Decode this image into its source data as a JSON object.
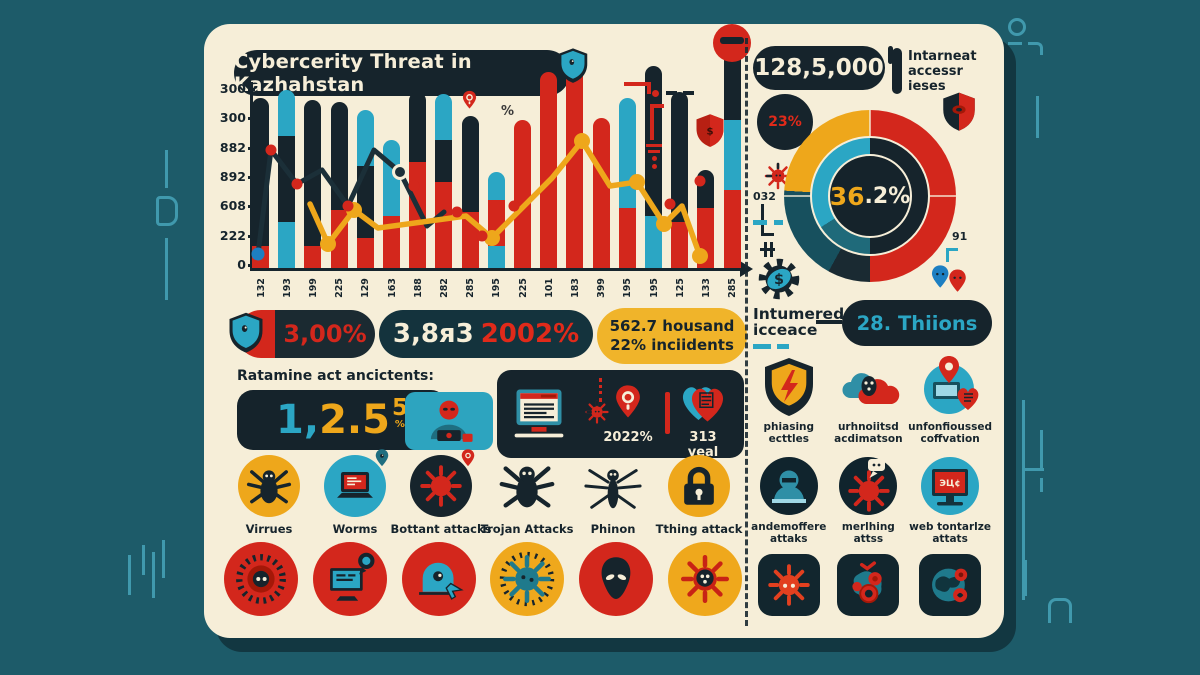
{
  "palette": {
    "red": "#d3271c",
    "dark": "#16242c",
    "cyan": "#2ba6c4",
    "yellow": "#eea71b",
    "tealdark": "#17505e",
    "blue": "#1d7fc2",
    "cream": "#f6eed8"
  },
  "title": "Cybercerity Threat in Kazhahstan",
  "chart_annotation": "%",
  "chart_data": [
    {
      "type": "bar",
      "subtype": "stacked bars with two line series",
      "title": "Cybercerity Threat in Kazhahstan",
      "ylabel": "",
      "xlabel": "",
      "y_ticks": [
        "300",
        "300",
        "882",
        "892",
        "608",
        "222",
        "0"
      ],
      "x_labels": [
        "132",
        "193",
        "199",
        "225",
        "129",
        "163",
        "188",
        "282",
        "285",
        "195",
        "225",
        "101",
        "183",
        "399",
        "195",
        "195",
        "125",
        "133",
        "285"
      ],
      "bars": [
        {
          "segments": [
            [
              "red",
              22
            ],
            [
              "dark",
              148
            ]
          ]
        },
        {
          "segments": [
            [
              "cyan",
              46
            ],
            [
              "dark",
              86
            ],
            [
              "cyan",
              46
            ]
          ]
        },
        {
          "segments": [
            [
              "red",
              22
            ],
            [
              "dark",
              146
            ]
          ]
        },
        {
          "segments": [
            [
              "red",
              58
            ],
            [
              "dark",
              108
            ]
          ]
        },
        {
          "segments": [
            [
              "red",
              30
            ],
            [
              "dark",
              72
            ],
            [
              "cyan",
              56
            ]
          ]
        },
        {
          "segments": [
            [
              "red",
              52
            ],
            [
              "cyan",
              76
            ]
          ]
        },
        {
          "segments": [
            [
              "red",
              106
            ],
            [
              "dark",
              70
            ]
          ]
        },
        {
          "segments": [
            [
              "red",
              86
            ],
            [
              "dark",
              42
            ],
            [
              "cyan",
              46
            ]
          ]
        },
        {
          "segments": [
            [
              "red",
              56
            ],
            [
              "dark",
              96
            ]
          ]
        },
        {
          "segments": [
            [
              "cyan",
              22
            ],
            [
              "red",
              46
            ],
            [
              "cyan",
              28
            ]
          ]
        },
        {
          "segments": [
            [
              "red",
              148
            ]
          ]
        },
        {
          "segments": [
            [
              "red",
              196
            ]
          ]
        },
        {
          "segments": [
            [
              "red",
              212
            ]
          ]
        },
        {
          "segments": [
            [
              "red",
              150
            ]
          ]
        },
        {
          "segments": [
            [
              "red",
              60
            ],
            [
              "cyan",
              110
            ]
          ]
        },
        {
          "segments": [
            [
              "cyan",
              52
            ],
            [
              "dark",
              150
            ]
          ]
        },
        {
          "segments": [
            [
              "red",
              46
            ],
            [
              "dark",
              130
            ]
          ]
        },
        {
          "segments": [
            [
              "red",
              60
            ],
            [
              "dark",
              38
            ]
          ]
        },
        {
          "segments": [
            [
              "red",
              78
            ],
            [
              "cyan",
              70
            ],
            [
              "dark",
              85
            ]
          ]
        }
      ],
      "series": [
        {
          "name": "incidents-dark-line",
          "color": "dark",
          "points": [
            [
              6,
              168
            ],
            [
              19,
              64
            ],
            [
              45,
              98
            ],
            [
              70,
              84
            ],
            [
              96,
              120
            ],
            [
              122,
              64
            ],
            [
              148,
              86
            ],
            [
              175,
              140
            ],
            [
              192,
              126
            ]
          ]
        },
        {
          "name": "trend-yellow-line",
          "color": "yellow",
          "points": [
            [
              58,
              118
            ],
            [
              76,
              158
            ],
            [
              102,
              124
            ],
            [
              126,
              142
            ],
            [
              214,
              130
            ],
            [
              240,
              152
            ],
            [
              300,
              92
            ],
            [
              330,
              55
            ],
            [
              358,
              100
            ],
            [
              385,
              96
            ],
            [
              412,
              138
            ],
            [
              430,
              120
            ],
            [
              448,
              170
            ]
          ]
        }
      ],
      "dots": {
        "red": [
          [
            19,
            64
          ],
          [
            45,
            98
          ],
          [
            96,
            120
          ],
          [
            162,
            100
          ],
          [
            205,
            126
          ],
          [
            230,
            150
          ],
          [
            262,
            120
          ],
          [
            418,
            118
          ],
          [
            448,
            95
          ]
        ],
        "yellow": [
          [
            76,
            158
          ],
          [
            102,
            124
          ],
          [
            240,
            152
          ],
          [
            330,
            55
          ],
          [
            385,
            96
          ],
          [
            412,
            138
          ],
          [
            448,
            170
          ]
        ],
        "blue": [
          [
            6,
            168
          ]
        ],
        "dark_ring": [
          [
            148,
            86
          ]
        ]
      }
    },
    {
      "type": "pie",
      "subtype": "double-ring donut",
      "center_parts": [
        "36",
        ".2%"
      ],
      "callout_badge": "23%",
      "callout_left": "032",
      "callout_right": "91",
      "outer_segments": [
        {
          "color": "#d3271c",
          "pct": 50
        },
        {
          "color": "#1a2a32",
          "pct": 8
        },
        {
          "color": "#17505e",
          "pct": 18
        },
        {
          "color": "#eea71b",
          "pct": 24
        }
      ],
      "inner_segments": [
        {
          "color": "#16242c",
          "pct": 50
        },
        {
          "color": "#1f6a7a",
          "pct": 16
        },
        {
          "color": "#2ba6c4",
          "pct": 34
        }
      ]
    }
  ],
  "stats": {
    "value1": "3,00%",
    "value2_main": "3,8я3",
    "value2_accent": "2002%",
    "value3_line1": "562.7 housand",
    "value3_line2": "22% inciidents"
  },
  "counter": {
    "label": "Ratamine act ancictents:",
    "parts": [
      "1,",
      "2.5",
      "5",
      "%"
    ]
  },
  "panel": {
    "pin_label": "2022%",
    "heart_label": "313 yeal"
  },
  "threats": {
    "items": [
      {
        "icon": "spider",
        "bg": "#eea71b",
        "label": "Virrues"
      },
      {
        "icon": "laptop",
        "bg": "#2ba6c4",
        "label": "Worms",
        "badge": "pin-teal"
      },
      {
        "icon": "virus",
        "bg": "#16242c",
        "label": "Bottant attacks",
        "badge": "pin-red"
      },
      {
        "icon": "spider",
        "bg": null,
        "label": "Trojan Attacks"
      },
      {
        "icon": "spider-thin",
        "bg": null,
        "label": "Phinon"
      },
      {
        "icon": "padlock",
        "bg": "#eea71b",
        "label": "Tthing attack"
      }
    ]
  },
  "bottom_icons": {
    "items": [
      {
        "icon": "eye-virus",
        "bg": "#d3271c"
      },
      {
        "icon": "monitor-bubble",
        "bg": "#d3271c"
      },
      {
        "icon": "lock-hand",
        "bg": "#d3271c"
      },
      {
        "icon": "virus-teal",
        "bg": "#efa81c"
      },
      {
        "icon": "alien",
        "bg": "#d3271c"
      },
      {
        "icon": "virus-pin",
        "bg": "#efa81c"
      }
    ]
  },
  "right": {
    "header": {
      "stat": "128,5,000",
      "caption": "Intarneat\naccessr ieses"
    },
    "increase": {
      "heading": "Intumered\nicceace",
      "pill": "28. Thiions"
    },
    "grid": {
      "items": [
        {
          "icon": "shield-bolt",
          "label": "phiasing\necttles"
        },
        {
          "icon": "clouds",
          "label": "urhnoiitsd\nacdimatson"
        },
        {
          "icon": "laptop-pin-heart",
          "label": "unfonfioussed\ncoffvation"
        },
        {
          "icon": "hacker-circle",
          "label": "andemoffere\nattaks"
        },
        {
          "icon": "virus-bubble",
          "label": "merlhing\nattss"
        },
        {
          "icon": "monitor-red",
          "label": "web tontarlze\nattats"
        },
        {
          "icon": "tile-virus",
          "label": ""
        },
        {
          "icon": "tile-gears",
          "label": ""
        },
        {
          "icon": "tile-globe",
          "label": ""
        }
      ]
    }
  }
}
